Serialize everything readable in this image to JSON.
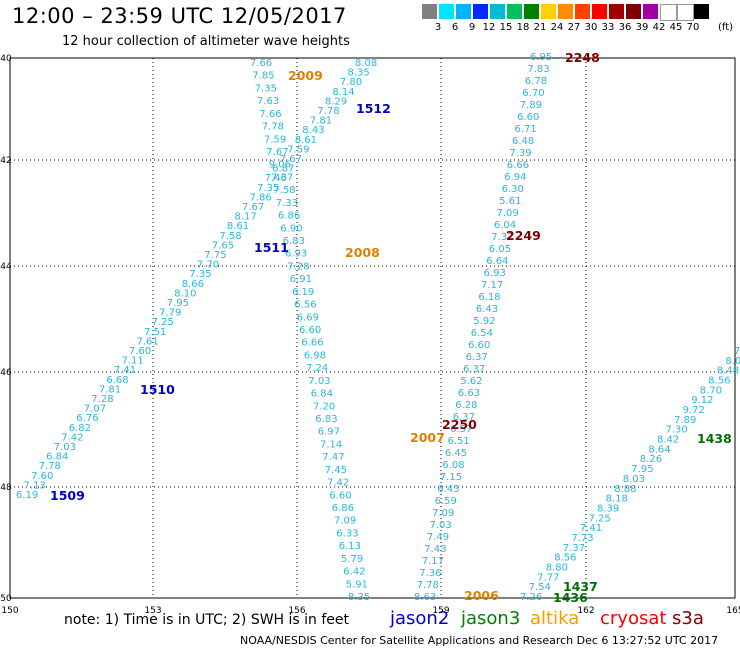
{
  "header": {
    "title": "12:00 – 23:59 UTC 12/05/2017",
    "subtitle": "12 hour collection of altimeter wave heights"
  },
  "scale": {
    "colors": [
      "#808080",
      "#00e5ff",
      "#00b4ff",
      "#0028ff",
      "#00bcd4",
      "#00c060",
      "#008000",
      "#ffd000",
      "#ff8c00",
      "#ff4000",
      "#ff0000",
      "#a00000",
      "#800000",
      "#a000a0",
      "#ffffff",
      "#ffffff",
      "#000000"
    ],
    "labels": [
      "3",
      "6",
      "9",
      "12",
      "15",
      "18",
      "21",
      "24",
      "27",
      "30",
      "33",
      "36",
      "39",
      "42",
      "45",
      "70"
    ],
    "unit": "(ft)"
  },
  "axes": {
    "x_ticks": [
      "150",
      "153",
      "156",
      "159",
      "162",
      "165"
    ],
    "y_ticks": [
      "40",
      "42",
      "44",
      "46",
      "48",
      "50"
    ]
  },
  "tracks": [
    {
      "label": "1509",
      "satellite": "jason2",
      "color": "#0000cc"
    },
    {
      "label": "1510",
      "satellite": "jason2",
      "color": "#0000cc"
    },
    {
      "label": "1511",
      "satellite": "jason2",
      "color": "#0000cc"
    },
    {
      "label": "1512",
      "satellite": "jason2",
      "color": "#0000cc"
    },
    {
      "label": "2006",
      "satellite": "altika",
      "color": "#e08000"
    },
    {
      "label": "2007",
      "satellite": "altika",
      "color": "#e08000"
    },
    {
      "label": "2008",
      "satellite": "altika",
      "color": "#e08000"
    },
    {
      "label": "2009",
      "satellite": "altika",
      "color": "#e08000"
    },
    {
      "label": "2248",
      "satellite": "s3a",
      "color": "#800000"
    },
    {
      "label": "2249",
      "satellite": "s3a",
      "color": "#800000"
    },
    {
      "label": "2250",
      "satellite": "s3a",
      "color": "#800000"
    },
    {
      "label": "1436",
      "satellite": "jason3",
      "color": "#007000"
    },
    {
      "label": "1437",
      "satellite": "jason3",
      "color": "#007000"
    },
    {
      "label": "1438",
      "satellite": "jason3",
      "color": "#007000"
    }
  ],
  "wave_heights": {
    "track_1509_1512": [
      "6.19",
      "7.13",
      "7.60",
      "7.78",
      "6.84",
      "7.03",
      "7.42",
      "6.82",
      "6.76",
      "7.07",
      "7.28",
      "7.81",
      "6.68",
      "7.41",
      "7.11",
      "7.60",
      "7.61",
      "7.51",
      "7.25",
      "7.79",
      "7.95",
      "8.10",
      "8.66",
      "7.35",
      "7.70",
      "7.75",
      "7.65",
      "7.58",
      "8.61",
      "8.17",
      "7.67",
      "7.86",
      "7.35",
      "7.46",
      "6.87",
      "7.67",
      "7.59",
      "8.61",
      "8.43",
      "7.81",
      "7.78",
      "8.29",
      "8.14",
      "7.80",
      "8.35",
      "8.08"
    ],
    "track_2009_2006": [
      "7.66",
      "7.85",
      "7.35",
      "7.63",
      "7.66",
      "7.78",
      "7.59",
      "7.67",
      "9.06",
      "7.37",
      "7.58",
      "7.33",
      "6.86",
      "6.90",
      "6.83",
      "6.93",
      "7.28",
      "6.91",
      "6.19",
      "6.56",
      "6.69",
      "6.60",
      "6.66",
      "6.98",
      "7.24",
      "7.03",
      "6.84",
      "7.20",
      "6.83",
      "6.97",
      "7.14",
      "7.47",
      "7.45",
      "7.42",
      "6.60",
      "6.86",
      "7.09",
      "6.33",
      "6.13",
      "5.79",
      "6.42",
      "5.91",
      "8.35"
    ],
    "track_2248_2250": [
      "6.95",
      "7.83",
      "6.78",
      "6.70",
      "7.89",
      "6.60",
      "6.71",
      "6.48",
      "7.39",
      "6.66",
      "6.94",
      "6.30",
      "5.61",
      "7.09",
      "6.04",
      "7.37",
      "6.05",
      "6.64",
      "6.93",
      "7.17",
      "6.18",
      "6.43",
      "5.92",
      "6.54",
      "6.60",
      "6.37",
      "6.37",
      "5.62",
      "6.63",
      "6.28",
      "6.37",
      "6.57",
      "6.51",
      "6.45",
      "6.08",
      "7.15",
      "6.43",
      "6.59",
      "7.09",
      "7.03",
      "7.49",
      "7.43",
      "7.17",
      "7.36",
      "7.78",
      "8.63"
    ],
    "track_1436_1438": [
      "7.26",
      "7.54",
      "7.77",
      "8.80",
      "8.56",
      "7.37",
      "7.73",
      "7.41",
      "7.25",
      "8.39",
      "8.18",
      "8.88",
      "8.03",
      "7.95",
      "8.26",
      "8.64",
      "8.42",
      "7.30",
      "7.89",
      "9.72",
      "9.12",
      "8.70",
      "8.56",
      "8.48",
      "8.0",
      "7"
    ]
  },
  "legend": [
    {
      "label": "jason2",
      "color": "#0000cc"
    },
    {
      "label": "jason3",
      "color": "#008000"
    },
    {
      "label": "altika",
      "color": "#ff9900"
    },
    {
      "label": "cryosat",
      "color": "#ff0000"
    },
    {
      "label": "s3a",
      "color": "#800000"
    }
  ],
  "note": "note:  1) Time is in UTC; 2) SWH is in feet",
  "footer": "NOAA/NESDIS Center for Satellite Applications and Research    Dec  6 13:27:52 UTC 2017"
}
